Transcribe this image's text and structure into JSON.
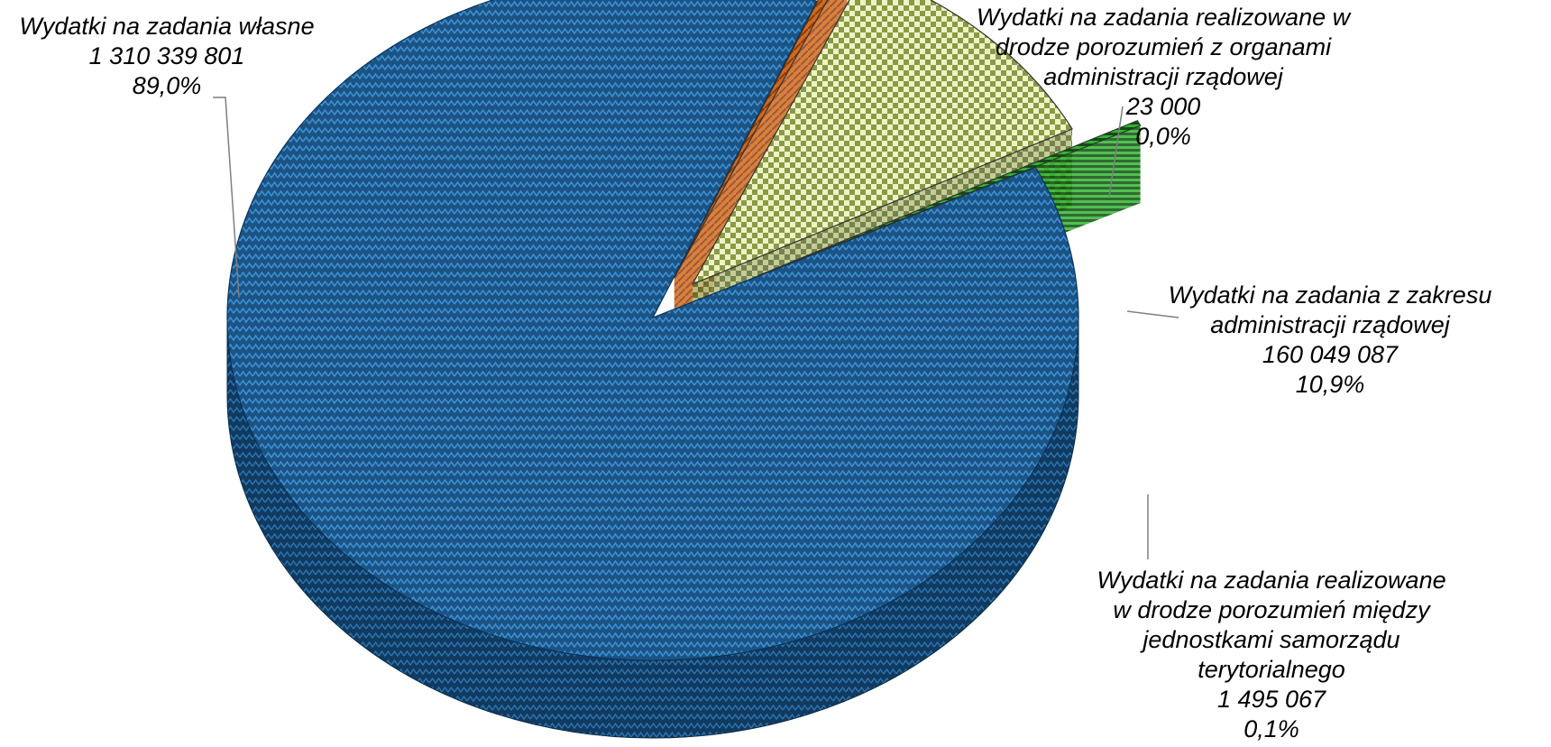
{
  "chart_data": {
    "type": "pie",
    "variant": "3d-exploded",
    "slices": [
      {
        "key": "own",
        "label_lines": [
          "Wydatki na zadania własne"
        ],
        "value": 1310339801,
        "value_text": "1 310 339 801",
        "percent": 89.0,
        "percent_text": "89,0%",
        "color": "#1f5d8f"
      },
      {
        "key": "gov_agreements",
        "label_lines": [
          "Wydatki na zadania realizowane w",
          "drodze porozumień z organami",
          "administracji rządowej"
        ],
        "value": 23000,
        "value_text": "23 000",
        "percent": 0.0,
        "percent_text": "0,0%",
        "color": "#d2691e"
      },
      {
        "key": "gov_admin",
        "label_lines": [
          "Wydatki na zadania z zakresu",
          "administracji rządowej"
        ],
        "value": 160049087,
        "value_text": "160 049 087",
        "percent": 10.9,
        "percent_text": "10,9%",
        "color": "#d8e4a0"
      },
      {
        "key": "jst_agreements",
        "label_lines": [
          "Wydatki na zadania realizowane",
          "w drodze porozumień między",
          "jednostkami samorządu",
          "terytorialnego"
        ],
        "value": 1495067,
        "value_text": "1 495 067",
        "percent": 0.1,
        "percent_text": "0,1%",
        "color": "#2e9e2e"
      }
    ]
  }
}
